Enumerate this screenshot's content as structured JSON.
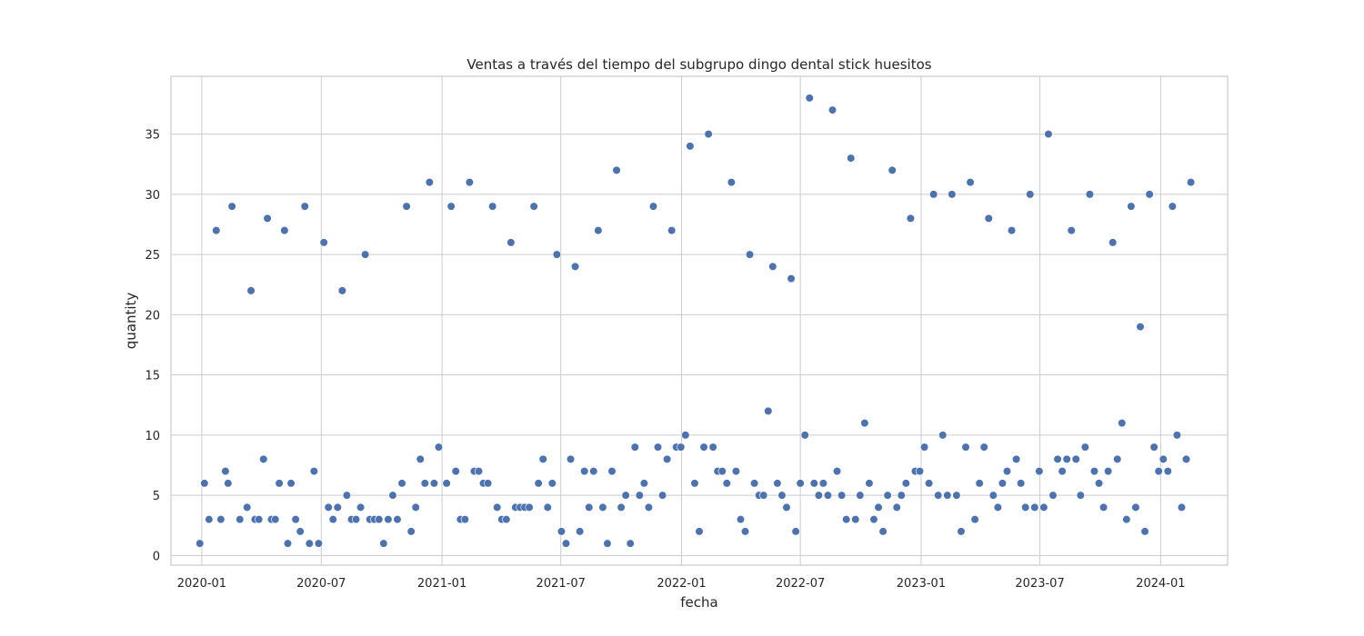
{
  "chart_data": {
    "type": "scatter",
    "title": "Ventas a través del tiempo del subgrupo dingo dental stick huesitos",
    "xlabel": "fecha",
    "ylabel": "quantity",
    "x_type": "date",
    "xlim": [
      "2019-11-15",
      "2024-04-12"
    ],
    "ylim": [
      -0.8,
      39.8
    ],
    "xticks": [
      "2020-01",
      "2020-07",
      "2021-01",
      "2021-07",
      "2022-01",
      "2022-07",
      "2023-01",
      "2023-07",
      "2024-01"
    ],
    "yticks": [
      0,
      5,
      10,
      15,
      20,
      25,
      30,
      35
    ],
    "grid": true,
    "legend": "none",
    "marker_color": "#4c72b0",
    "points": [
      [
        "2019-12-29",
        1
      ],
      [
        "2020-01-05",
        6
      ],
      [
        "2020-01-12",
        3
      ],
      [
        "2020-01-23",
        27
      ],
      [
        "2020-01-30",
        3
      ],
      [
        "2020-02-06",
        7
      ],
      [
        "2020-02-10",
        6
      ],
      [
        "2020-02-16",
        29
      ],
      [
        "2020-02-28",
        3
      ],
      [
        "2020-03-10",
        4
      ],
      [
        "2020-03-16",
        22
      ],
      [
        "2020-03-22",
        3
      ],
      [
        "2020-03-28",
        3
      ],
      [
        "2020-04-04",
        8
      ],
      [
        "2020-04-10",
        28
      ],
      [
        "2020-04-16",
        3
      ],
      [
        "2020-04-22",
        3
      ],
      [
        "2020-04-28",
        6
      ],
      [
        "2020-05-06",
        27
      ],
      [
        "2020-05-11",
        1
      ],
      [
        "2020-05-16",
        6
      ],
      [
        "2020-05-23",
        3
      ],
      [
        "2020-05-30",
        2
      ],
      [
        "2020-06-06",
        29
      ],
      [
        "2020-06-13",
        1
      ],
      [
        "2020-06-20",
        7
      ],
      [
        "2020-06-27",
        1
      ],
      [
        "2020-07-05",
        26
      ],
      [
        "2020-07-12",
        4
      ],
      [
        "2020-07-19",
        3
      ],
      [
        "2020-07-26",
        4
      ],
      [
        "2020-08-02",
        22
      ],
      [
        "2020-08-09",
        5
      ],
      [
        "2020-08-16",
        3
      ],
      [
        "2020-08-23",
        3
      ],
      [
        "2020-08-30",
        4
      ],
      [
        "2020-09-06",
        25
      ],
      [
        "2020-09-13",
        3
      ],
      [
        "2020-09-20",
        3
      ],
      [
        "2020-09-27",
        3
      ],
      [
        "2020-10-04",
        1
      ],
      [
        "2020-10-11",
        3
      ],
      [
        "2020-10-18",
        5
      ],
      [
        "2020-10-25",
        3
      ],
      [
        "2020-11-01",
        6
      ],
      [
        "2020-11-08",
        29
      ],
      [
        "2020-11-15",
        2
      ],
      [
        "2020-11-22",
        4
      ],
      [
        "2020-11-29",
        8
      ],
      [
        "2020-12-06",
        6
      ],
      [
        "2020-12-13",
        31
      ],
      [
        "2020-12-20",
        6
      ],
      [
        "2020-12-27",
        9
      ],
      [
        "2021-01-08",
        6
      ],
      [
        "2021-01-15",
        29
      ],
      [
        "2021-01-22",
        7
      ],
      [
        "2021-01-29",
        3
      ],
      [
        "2021-02-05",
        3
      ],
      [
        "2021-02-12",
        31
      ],
      [
        "2021-02-19",
        7
      ],
      [
        "2021-02-26",
        7
      ],
      [
        "2021-03-05",
        6
      ],
      [
        "2021-03-12",
        6
      ],
      [
        "2021-03-19",
        29
      ],
      [
        "2021-03-26",
        4
      ],
      [
        "2021-04-02",
        3
      ],
      [
        "2021-04-09",
        3
      ],
      [
        "2021-04-16",
        26
      ],
      [
        "2021-04-23",
        4
      ],
      [
        "2021-04-30",
        4
      ],
      [
        "2021-05-07",
        4
      ],
      [
        "2021-05-14",
        4
      ],
      [
        "2021-05-21",
        29
      ],
      [
        "2021-05-28",
        6
      ],
      [
        "2021-06-04",
        8
      ],
      [
        "2021-06-11",
        4
      ],
      [
        "2021-06-18",
        6
      ],
      [
        "2021-06-25",
        25
      ],
      [
        "2021-07-02",
        2
      ],
      [
        "2021-07-09",
        1
      ],
      [
        "2021-07-16",
        8
      ],
      [
        "2021-07-23",
        24
      ],
      [
        "2021-07-30",
        2
      ],
      [
        "2021-08-06",
        7
      ],
      [
        "2021-08-13",
        4
      ],
      [
        "2021-08-20",
        7
      ],
      [
        "2021-08-27",
        27
      ],
      [
        "2021-09-03",
        4
      ],
      [
        "2021-09-10",
        1
      ],
      [
        "2021-09-17",
        7
      ],
      [
        "2021-09-24",
        32
      ],
      [
        "2021-10-01",
        4
      ],
      [
        "2021-10-08",
        5
      ],
      [
        "2021-10-15",
        1
      ],
      [
        "2021-10-22",
        9
      ],
      [
        "2021-10-29",
        5
      ],
      [
        "2021-11-05",
        6
      ],
      [
        "2021-11-12",
        4
      ],
      [
        "2021-11-19",
        29
      ],
      [
        "2021-11-26",
        9
      ],
      [
        "2021-12-03",
        5
      ],
      [
        "2021-12-10",
        8
      ],
      [
        "2021-12-17",
        27
      ],
      [
        "2021-12-24",
        9
      ],
      [
        "2021-12-31",
        9
      ],
      [
        "2022-01-07",
        10
      ],
      [
        "2022-01-14",
        34
      ],
      [
        "2022-01-21",
        6
      ],
      [
        "2022-01-28",
        2
      ],
      [
        "2022-02-04",
        9
      ],
      [
        "2022-02-11",
        35
      ],
      [
        "2022-02-18",
        9
      ],
      [
        "2022-02-25",
        7
      ],
      [
        "2022-03-04",
        7
      ],
      [
        "2022-03-11",
        6
      ],
      [
        "2022-03-18",
        31
      ],
      [
        "2022-03-25",
        7
      ],
      [
        "2022-04-01",
        3
      ],
      [
        "2022-04-08",
        2
      ],
      [
        "2022-04-15",
        25
      ],
      [
        "2022-04-22",
        6
      ],
      [
        "2022-04-29",
        5
      ],
      [
        "2022-05-06",
        5
      ],
      [
        "2022-05-13",
        12
      ],
      [
        "2022-05-20",
        24
      ],
      [
        "2022-05-27",
        6
      ],
      [
        "2022-06-03",
        5
      ],
      [
        "2022-06-10",
        4
      ],
      [
        "2022-06-17",
        23
      ],
      [
        "2022-06-24",
        2
      ],
      [
        "2022-07-01",
        6
      ],
      [
        "2022-07-08",
        10
      ],
      [
        "2022-07-15",
        38
      ],
      [
        "2022-07-22",
        6
      ],
      [
        "2022-07-29",
        5
      ],
      [
        "2022-08-05",
        6
      ],
      [
        "2022-08-12",
        5
      ],
      [
        "2022-08-19",
        37
      ],
      [
        "2022-08-26",
        7
      ],
      [
        "2022-09-02",
        5
      ],
      [
        "2022-09-09",
        3
      ],
      [
        "2022-09-16",
        33
      ],
      [
        "2022-09-23",
        3
      ],
      [
        "2022-09-30",
        5
      ],
      [
        "2022-10-07",
        11
      ],
      [
        "2022-10-14",
        6
      ],
      [
        "2022-10-21",
        3
      ],
      [
        "2022-10-28",
        4
      ],
      [
        "2022-11-04",
        2
      ],
      [
        "2022-11-11",
        5
      ],
      [
        "2022-11-18",
        32
      ],
      [
        "2022-11-25",
        4
      ],
      [
        "2022-12-02",
        5
      ],
      [
        "2022-12-09",
        6
      ],
      [
        "2022-12-16",
        28
      ],
      [
        "2022-12-23",
        7
      ],
      [
        "2022-12-30",
        7
      ],
      [
        "2023-01-06",
        9
      ],
      [
        "2023-01-13",
        6
      ],
      [
        "2023-01-20",
        30
      ],
      [
        "2023-01-27",
        5
      ],
      [
        "2023-02-03",
        10
      ],
      [
        "2023-02-10",
        5
      ],
      [
        "2023-02-17",
        30
      ],
      [
        "2023-02-24",
        5
      ],
      [
        "2023-03-03",
        2
      ],
      [
        "2023-03-10",
        9
      ],
      [
        "2023-03-17",
        31
      ],
      [
        "2023-03-24",
        3
      ],
      [
        "2023-03-31",
        6
      ],
      [
        "2023-04-07",
        9
      ],
      [
        "2023-04-14",
        28
      ],
      [
        "2023-04-21",
        5
      ],
      [
        "2023-04-28",
        4
      ],
      [
        "2023-05-05",
        6
      ],
      [
        "2023-05-12",
        7
      ],
      [
        "2023-05-19",
        27
      ],
      [
        "2023-05-26",
        8
      ],
      [
        "2023-06-02",
        6
      ],
      [
        "2023-06-09",
        4
      ],
      [
        "2023-06-16",
        30
      ],
      [
        "2023-06-23",
        4
      ],
      [
        "2023-06-30",
        7
      ],
      [
        "2023-07-07",
        4
      ],
      [
        "2023-07-14",
        35
      ],
      [
        "2023-07-21",
        5
      ],
      [
        "2023-07-28",
        8
      ],
      [
        "2023-08-04",
        7
      ],
      [
        "2023-08-11",
        8
      ],
      [
        "2023-08-18",
        27
      ],
      [
        "2023-08-25",
        8
      ],
      [
        "2023-09-01",
        5
      ],
      [
        "2023-09-08",
        9
      ],
      [
        "2023-09-15",
        30
      ],
      [
        "2023-09-22",
        7
      ],
      [
        "2023-09-29",
        6
      ],
      [
        "2023-10-06",
        4
      ],
      [
        "2023-10-13",
        7
      ],
      [
        "2023-10-20",
        26
      ],
      [
        "2023-10-27",
        8
      ],
      [
        "2023-11-03",
        11
      ],
      [
        "2023-11-10",
        3
      ],
      [
        "2023-11-17",
        29
      ],
      [
        "2023-11-24",
        4
      ],
      [
        "2023-12-01",
        19
      ],
      [
        "2023-12-08",
        2
      ],
      [
        "2023-12-15",
        30
      ],
      [
        "2023-12-22",
        9
      ],
      [
        "2023-12-29",
        7
      ],
      [
        "2024-01-05",
        8
      ],
      [
        "2024-01-12",
        7
      ],
      [
        "2024-01-19",
        29
      ],
      [
        "2024-01-26",
        10
      ],
      [
        "2024-02-02",
        4
      ],
      [
        "2024-02-09",
        8
      ],
      [
        "2024-02-16",
        31
      ]
    ]
  }
}
